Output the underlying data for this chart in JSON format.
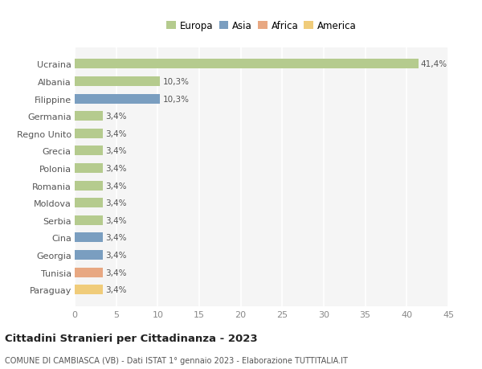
{
  "categories": [
    "Ucraina",
    "Albania",
    "Filippine",
    "Germania",
    "Regno Unito",
    "Grecia",
    "Polonia",
    "Romania",
    "Moldova",
    "Serbia",
    "Cina",
    "Georgia",
    "Tunisia",
    "Paraguay"
  ],
  "values": [
    41.4,
    10.3,
    10.3,
    3.4,
    3.4,
    3.4,
    3.4,
    3.4,
    3.4,
    3.4,
    3.4,
    3.4,
    3.4,
    3.4
  ],
  "labels": [
    "41,4%",
    "10,3%",
    "10,3%",
    "3,4%",
    "3,4%",
    "3,4%",
    "3,4%",
    "3,4%",
    "3,4%",
    "3,4%",
    "3,4%",
    "3,4%",
    "3,4%",
    "3,4%"
  ],
  "bar_colors": [
    "#b5cb8e",
    "#b5cb8e",
    "#7a9ec0",
    "#b5cb8e",
    "#b5cb8e",
    "#b5cb8e",
    "#b5cb8e",
    "#b5cb8e",
    "#b5cb8e",
    "#b5cb8e",
    "#7a9ec0",
    "#7a9ec0",
    "#e8a882",
    "#f0cc7a"
  ],
  "legend_labels": [
    "Europa",
    "Asia",
    "Africa",
    "America"
  ],
  "legend_colors": [
    "#b5cb8e",
    "#7a9ec0",
    "#e8a882",
    "#f0cc7a"
  ],
  "xlim": [
    0,
    45
  ],
  "xticks": [
    0,
    5,
    10,
    15,
    20,
    25,
    30,
    35,
    40,
    45
  ],
  "title": "Cittadini Stranieri per Cittadinanza - 2023",
  "subtitle": "COMUNE DI CAMBIASCA (VB) - Dati ISTAT 1° gennaio 2023 - Elaborazione TUTTITALIA.IT",
  "bg_color": "#ffffff",
  "plot_bg_color": "#f5f5f5",
  "grid_color": "#ffffff",
  "bar_height": 0.55
}
